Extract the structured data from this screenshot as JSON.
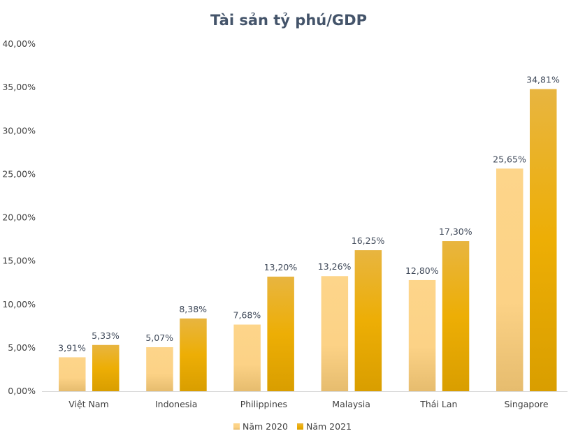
{
  "chart_data": {
    "type": "bar",
    "title": "Tài sản tỷ phú/GDP",
    "categories": [
      "Việt Nam",
      "Indonesia",
      "Philippines",
      "Malaysia",
      "Thái Lan",
      "Singapore"
    ],
    "series": [
      {
        "name": "Năm 2020",
        "values": [
          3.91,
          5.07,
          7.68,
          13.26,
          12.8,
          25.65
        ],
        "labels": [
          "3,91%",
          "5,07%",
          "7,68%",
          "13,26%",
          "12,80%",
          "25,65%"
        ],
        "color": "#FDD58A"
      },
      {
        "name": "Năm 2021",
        "values": [
          5.33,
          8.38,
          13.2,
          16.25,
          17.3,
          34.81
        ],
        "labels": [
          "5,33%",
          "8,38%",
          "13,20%",
          "16,25%",
          "17,30%",
          "34,81%"
        ],
        "color": "#EDB00A"
      }
    ],
    "ylim": [
      0,
      40
    ],
    "yticks": [
      "0,00%",
      "5,00%",
      "10,00%",
      "15,00%",
      "20,00%",
      "25,00%",
      "30,00%",
      "35,00%",
      "40,00%"
    ],
    "xlabel": "",
    "ylabel": "",
    "grid": false,
    "legend": "bottom"
  }
}
